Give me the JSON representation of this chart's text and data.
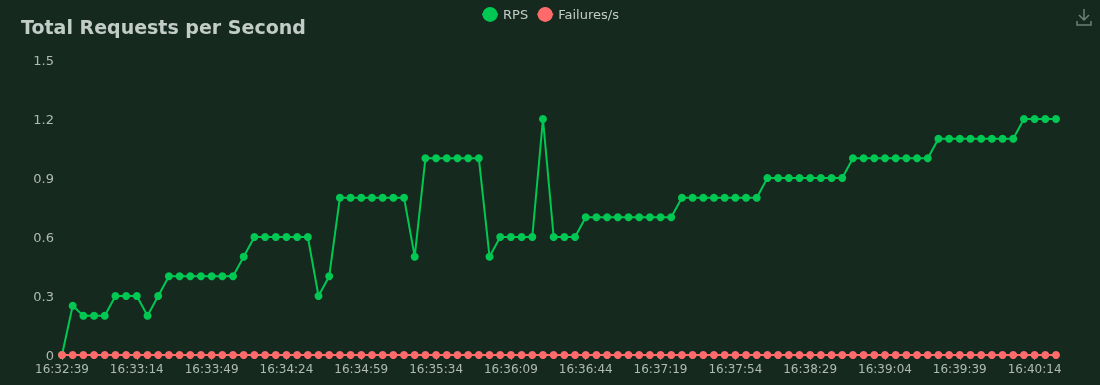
{
  "chart_data": {
    "type": "line",
    "title": "Total Requests per Second",
    "categories": [
      "16:32:39",
      null,
      null,
      null,
      null,
      null,
      null,
      "16:33:14",
      null,
      null,
      null,
      null,
      null,
      null,
      "16:33:49",
      null,
      null,
      null,
      null,
      null,
      null,
      "16:34:24",
      null,
      null,
      null,
      null,
      null,
      null,
      "16:34:59",
      null,
      null,
      null,
      null,
      null,
      null,
      "16:35:34",
      null,
      null,
      null,
      null,
      null,
      null,
      "16:36:09",
      null,
      null,
      null,
      null,
      null,
      null,
      "16:36:44",
      null,
      null,
      null,
      null,
      null,
      null,
      "16:37:19",
      null,
      null,
      null,
      null,
      null,
      null,
      "16:37:54",
      null,
      null,
      null,
      null,
      null,
      null,
      "16:38:29",
      null,
      null,
      null,
      null,
      null,
      null,
      "16:39:04",
      null,
      null,
      null,
      null,
      null,
      null,
      "16:39:39",
      null,
      null,
      null,
      null,
      null,
      null,
      "16:40:14",
      null,
      null
    ],
    "series": [
      {
        "name": "RPS",
        "color": "#00c853",
        "values": [
          0,
          0.25,
          0.2,
          0.2,
          0.2,
          0.3,
          0.3,
          0.3,
          0.2,
          0.3,
          0.4,
          0.4,
          0.4,
          0.4,
          0.4,
          0.4,
          0.4,
          0.5,
          0.6,
          0.6,
          0.6,
          0.6,
          0.6,
          0.6,
          0.3,
          0.4,
          0.8,
          0.8,
          0.8,
          0.8,
          0.8,
          0.8,
          0.8,
          0.5,
          1,
          1,
          1,
          1,
          1,
          1,
          0.5,
          0.6,
          0.6,
          0.6,
          0.6,
          1.2,
          0.6,
          0.6,
          0.6,
          0.7,
          0.7,
          0.7,
          0.7,
          0.7,
          0.7,
          0.7,
          0.7,
          0.7,
          0.8,
          0.8,
          0.8,
          0.8,
          0.8,
          0.8,
          0.8,
          0.8,
          0.9,
          0.9,
          0.9,
          0.9,
          0.9,
          0.9,
          0.9,
          0.9,
          1,
          1,
          1,
          1,
          1,
          1,
          1,
          1,
          1.1,
          1.1,
          1.1,
          1.1,
          1.1,
          1.1,
          1.1,
          1.1,
          1.2,
          1.2,
          1.2,
          1.2
        ]
      },
      {
        "name": "Failures/s",
        "color": "#ff6b6b",
        "values": [
          0,
          0,
          0,
          0,
          0,
          0,
          0,
          0,
          0,
          0,
          0,
          0,
          0,
          0,
          0,
          0,
          0,
          0,
          0,
          0,
          0,
          0,
          0,
          0,
          0,
          0,
          0,
          0,
          0,
          0,
          0,
          0,
          0,
          0,
          0,
          0,
          0,
          0,
          0,
          0,
          0,
          0,
          0,
          0,
          0,
          0,
          0,
          0,
          0,
          0,
          0,
          0,
          0,
          0,
          0,
          0,
          0,
          0,
          0,
          0,
          0,
          0,
          0,
          0,
          0,
          0,
          0,
          0,
          0,
          0,
          0,
          0,
          0,
          0,
          0,
          0,
          0,
          0,
          0,
          0,
          0,
          0,
          0,
          0,
          0,
          0,
          0,
          0,
          0,
          0,
          0,
          0,
          0,
          0
        ]
      }
    ],
    "ylim": [
      0,
      1.5
    ],
    "yticks": [
      0,
      0.3,
      0.6,
      0.9,
      1.2,
      1.5
    ],
    "grid": false,
    "legend": "top",
    "marker": "circle",
    "line_style": "solid"
  }
}
